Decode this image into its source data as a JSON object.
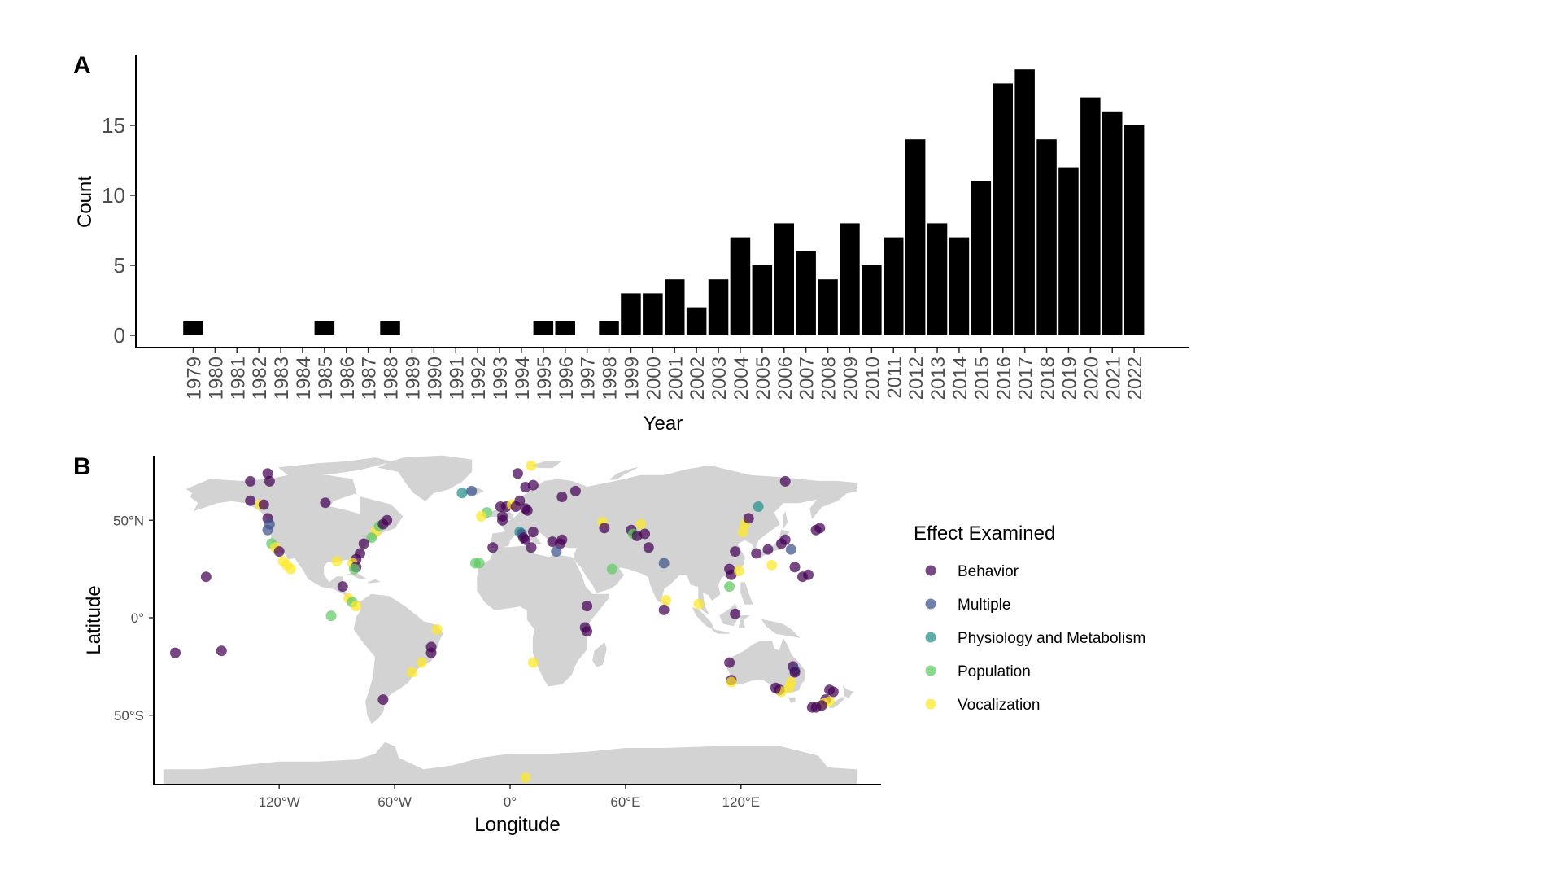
{
  "panel_a_label": "A",
  "panel_b_label": "B",
  "chart_data": [
    {
      "type": "bar",
      "panel": "A",
      "xlabel": "Year",
      "ylabel": "Count",
      "ylim": [
        0,
        20
      ],
      "yticks": [
        0,
        5,
        10,
        15
      ],
      "bar_color": "#000000",
      "categories": [
        "1979",
        "1980",
        "1981",
        "1982",
        "1983",
        "1984",
        "1985",
        "1986",
        "1987",
        "1988",
        "1989",
        "1990",
        "1991",
        "1992",
        "1993",
        "1994",
        "1995",
        "1996",
        "1997",
        "1998",
        "1999",
        "2000",
        "2001",
        "2002",
        "2003",
        "2004",
        "2005",
        "2006",
        "2007",
        "2008",
        "2009",
        "2010",
        "2011",
        "2012",
        "2013",
        "2014",
        "2015",
        "2016",
        "2017",
        "2018",
        "2019",
        "2020",
        "2021",
        "2022"
      ],
      "values": [
        1,
        0,
        0,
        0,
        0,
        0,
        1,
        0,
        0,
        1,
        0,
        0,
        0,
        0,
        0,
        0,
        1,
        1,
        0,
        1,
        3,
        3,
        4,
        2,
        4,
        7,
        5,
        8,
        6,
        4,
        8,
        5,
        7,
        14,
        8,
        7,
        11,
        18,
        19,
        14,
        12,
        17,
        16,
        15
      ]
    },
    {
      "type": "scatter",
      "panel": "B",
      "xlabel": "Longitude",
      "ylabel": "Latitude",
      "xlim": [
        -180,
        190
      ],
      "ylim": [
        -85,
        84
      ],
      "xticks": [
        {
          "v": -120,
          "label": "120°W"
        },
        {
          "v": -60,
          "label": "60°W"
        },
        {
          "v": 0,
          "label": "0°"
        },
        {
          "v": 60,
          "label": "60°E"
        },
        {
          "v": 120,
          "label": "120°E"
        }
      ],
      "yticks": [
        {
          "v": 50,
          "label": "50°N"
        },
        {
          "v": 0,
          "label": "0°"
        },
        {
          "v": -50,
          "label": "50°S"
        }
      ],
      "land_color": "#d3d3d3",
      "legend_title": "Effect Examined",
      "categories": [
        {
          "name": "Behavior",
          "color": "#440154"
        },
        {
          "name": "Multiple",
          "color": "#3b528b"
        },
        {
          "name": "Physiology and Metabolism",
          "color": "#21908c"
        },
        {
          "name": "Population",
          "color": "#5ec962"
        },
        {
          "name": "Vocalization",
          "color": "#fde725"
        }
      ],
      "points": [
        {
          "lon": -135,
          "lat": 70,
          "cat": "Behavior"
        },
        {
          "lon": -126,
          "lat": 74,
          "cat": "Behavior"
        },
        {
          "lon": -125,
          "lat": 70,
          "cat": "Behavior"
        },
        {
          "lon": -135,
          "lat": 60,
          "cat": "Behavior"
        },
        {
          "lon": -130,
          "lat": 58,
          "cat": "Vocalization"
        },
        {
          "lon": -128,
          "lat": 58,
          "cat": "Behavior"
        },
        {
          "lon": -126,
          "lat": 51,
          "cat": "Behavior"
        },
        {
          "lon": -125,
          "lat": 48,
          "cat": "Multiple"
        },
        {
          "lon": -126,
          "lat": 45,
          "cat": "Multiple"
        },
        {
          "lon": -124,
          "lat": 38,
          "cat": "Population"
        },
        {
          "lon": -122,
          "lat": 36,
          "cat": "Vocalization"
        },
        {
          "lon": -120,
          "lat": 34,
          "cat": "Behavior"
        },
        {
          "lon": -118,
          "lat": 29,
          "cat": "Vocalization"
        },
        {
          "lon": -116,
          "lat": 27,
          "cat": "Vocalization"
        },
        {
          "lon": -114,
          "lat": 25,
          "cat": "Vocalization"
        },
        {
          "lon": -96,
          "lat": 59,
          "cat": "Behavior"
        },
        {
          "lon": -158,
          "lat": 21,
          "cat": "Behavior"
        },
        {
          "lon": -174,
          "lat": -18,
          "cat": "Behavior"
        },
        {
          "lon": -150,
          "lat": -17,
          "cat": "Behavior"
        },
        {
          "lon": -70,
          "lat": 44,
          "cat": "Vocalization"
        },
        {
          "lon": -68,
          "lat": 47,
          "cat": "Population"
        },
        {
          "lon": -66,
          "lat": 48,
          "cat": "Behavior"
        },
        {
          "lon": -64,
          "lat": 50,
          "cat": "Behavior"
        },
        {
          "lon": -72,
          "lat": 41,
          "cat": "Population"
        },
        {
          "lon": -76,
          "lat": 38,
          "cat": "Behavior"
        },
        {
          "lon": -78,
          "lat": 33,
          "cat": "Behavior"
        },
        {
          "lon": -80,
          "lat": 30,
          "cat": "Behavior"
        },
        {
          "lon": -82,
          "lat": 28,
          "cat": "Vocalization"
        },
        {
          "lon": -80,
          "lat": 26,
          "cat": "Behavior"
        },
        {
          "lon": -81,
          "lat": 25,
          "cat": "Population"
        },
        {
          "lon": -90,
          "lat": 29,
          "cat": "Vocalization"
        },
        {
          "lon": -87,
          "lat": 16,
          "cat": "Behavior"
        },
        {
          "lon": -84,
          "lat": 10,
          "cat": "Vocalization"
        },
        {
          "lon": -82,
          "lat": 8,
          "cat": "Population"
        },
        {
          "lon": -80,
          "lat": 6,
          "cat": "Vocalization"
        },
        {
          "lon": -93,
          "lat": 1,
          "cat": "Population"
        },
        {
          "lon": -38,
          "lat": -6,
          "cat": "Vocalization"
        },
        {
          "lon": -41,
          "lat": -15,
          "cat": "Behavior"
        },
        {
          "lon": -41,
          "lat": -18,
          "cat": "Behavior"
        },
        {
          "lon": -46,
          "lat": -23,
          "cat": "Vocalization"
        },
        {
          "lon": -51,
          "lat": -28,
          "cat": "Vocalization"
        },
        {
          "lon": -66,
          "lat": -42,
          "cat": "Behavior"
        },
        {
          "lon": -25,
          "lat": 64,
          "cat": "Physiology and Metabolism"
        },
        {
          "lon": -20,
          "lat": 65,
          "cat": "Multiple"
        },
        {
          "lon": -12,
          "lat": 54,
          "cat": "Population"
        },
        {
          "lon": -18,
          "lat": 28,
          "cat": "Population"
        },
        {
          "lon": -16,
          "lat": 28,
          "cat": "Population"
        },
        {
          "lon": -9,
          "lat": 36,
          "cat": "Behavior"
        },
        {
          "lon": -5,
          "lat": 57,
          "cat": "Behavior"
        },
        {
          "lon": -4,
          "lat": 52,
          "cat": "Behavior"
        },
        {
          "lon": -4,
          "lat": 50,
          "cat": "Behavior"
        },
        {
          "lon": -2,
          "lat": 57,
          "cat": "Behavior"
        },
        {
          "lon": 1,
          "lat": 58,
          "cat": "Vocalization"
        },
        {
          "lon": 3,
          "lat": 57,
          "cat": "Behavior"
        },
        {
          "lon": 5,
          "lat": 60,
          "cat": "Behavior"
        },
        {
          "lon": 8,
          "lat": 56,
          "cat": "Behavior"
        },
        {
          "lon": 8,
          "lat": 67,
          "cat": "Behavior"
        },
        {
          "lon": 4,
          "lat": 74,
          "cat": "Behavior"
        },
        {
          "lon": 11,
          "lat": 78,
          "cat": "Vocalization"
        },
        {
          "lon": 12,
          "lat": 68,
          "cat": "Behavior"
        },
        {
          "lon": 9,
          "lat": 55,
          "cat": "Behavior"
        },
        {
          "lon": -15,
          "lat": 52,
          "cat": "Vocalization"
        },
        {
          "lon": 5,
          "lat": 44,
          "cat": "Physiology and Metabolism"
        },
        {
          "lon": 6,
          "lat": 43,
          "cat": "Multiple"
        },
        {
          "lon": 7,
          "lat": 41,
          "cat": "Behavior"
        },
        {
          "lon": 8,
          "lat": 40,
          "cat": "Behavior"
        },
        {
          "lon": 11,
          "lat": 36,
          "cat": "Behavior"
        },
        {
          "lon": 12,
          "lat": 44,
          "cat": "Behavior"
        },
        {
          "lon": 22,
          "lat": 39,
          "cat": "Behavior"
        },
        {
          "lon": 26,
          "lat": 38,
          "cat": "Behavior"
        },
        {
          "lon": 27,
          "lat": 40,
          "cat": "Behavior"
        },
        {
          "lon": 24,
          "lat": 34,
          "cat": "Multiple"
        },
        {
          "lon": 27,
          "lat": 62,
          "cat": "Behavior"
        },
        {
          "lon": 34,
          "lat": 65,
          "cat": "Behavior"
        },
        {
          "lon": 40,
          "lat": 6,
          "cat": "Behavior"
        },
        {
          "lon": 39,
          "lat": -5,
          "cat": "Behavior"
        },
        {
          "lon": 40,
          "lat": -7,
          "cat": "Behavior"
        },
        {
          "lon": 12,
          "lat": -23,
          "cat": "Vocalization"
        },
        {
          "lon": 8,
          "lat": -82,
          "cat": "Vocalization"
        },
        {
          "lon": 48,
          "lat": 49,
          "cat": "Vocalization"
        },
        {
          "lon": 49,
          "lat": 46,
          "cat": "Behavior"
        },
        {
          "lon": 53,
          "lat": 25,
          "cat": "Population"
        },
        {
          "lon": 63,
          "lat": 45,
          "cat": "Behavior"
        },
        {
          "lon": 64,
          "lat": 43,
          "cat": "Population"
        },
        {
          "lon": 66,
          "lat": 42,
          "cat": "Behavior"
        },
        {
          "lon": 68,
          "lat": 48,
          "cat": "Vocalization"
        },
        {
          "lon": 70,
          "lat": 43,
          "cat": "Behavior"
        },
        {
          "lon": 72,
          "lat": 36,
          "cat": "Behavior"
        },
        {
          "lon": 80,
          "lat": 28,
          "cat": "Multiple"
        },
        {
          "lon": 81,
          "lat": 9,
          "cat": "Vocalization"
        },
        {
          "lon": 80,
          "lat": 4,
          "cat": "Behavior"
        },
        {
          "lon": 98,
          "lat": 7,
          "cat": "Vocalization"
        },
        {
          "lon": 114,
          "lat": 25,
          "cat": "Behavior"
        },
        {
          "lon": 115,
          "lat": 22,
          "cat": "Behavior"
        },
        {
          "lon": 117,
          "lat": 34,
          "cat": "Behavior"
        },
        {
          "lon": 119,
          "lat": 24,
          "cat": "Vocalization"
        },
        {
          "lon": 121,
          "lat": 44,
          "cat": "Vocalization"
        },
        {
          "lon": 122,
          "lat": 48,
          "cat": "Vocalization"
        },
        {
          "lon": 124,
          "lat": 51,
          "cat": "Behavior"
        },
        {
          "lon": 129,
          "lat": 57,
          "cat": "Physiology and Metabolism"
        },
        {
          "lon": 128,
          "lat": 33,
          "cat": "Behavior"
        },
        {
          "lon": 134,
          "lat": 35,
          "cat": "Behavior"
        },
        {
          "lon": 141,
          "lat": 38,
          "cat": "Behavior"
        },
        {
          "lon": 143,
          "lat": 40,
          "cat": "Behavior"
        },
        {
          "lon": 146,
          "lat": 35,
          "cat": "Multiple"
        },
        {
          "lon": 148,
          "lat": 26,
          "cat": "Behavior"
        },
        {
          "lon": 152,
          "lat": 21,
          "cat": "Behavior"
        },
        {
          "lon": 155,
          "lat": 22,
          "cat": "Behavior"
        },
        {
          "lon": 136,
          "lat": 27,
          "cat": "Vocalization"
        },
        {
          "lon": 143,
          "lat": 70,
          "cat": "Behavior"
        },
        {
          "lon": 159,
          "lat": 45,
          "cat": "Behavior"
        },
        {
          "lon": 161,
          "lat": 46,
          "cat": "Behavior"
        },
        {
          "lon": 117,
          "lat": 2,
          "cat": "Behavior"
        },
        {
          "lon": 114,
          "lat": 16,
          "cat": "Population"
        },
        {
          "lon": 114,
          "lat": -23,
          "cat": "Behavior"
        },
        {
          "lon": 115,
          "lat": -32,
          "cat": "Behavior"
        },
        {
          "lon": 115,
          "lat": -33,
          "cat": "Vocalization"
        },
        {
          "lon": 147,
          "lat": -25,
          "cat": "Behavior"
        },
        {
          "lon": 148,
          "lat": -27,
          "cat": "Multiple"
        },
        {
          "lon": 148,
          "lat": -28,
          "cat": "Behavior"
        },
        {
          "lon": 146,
          "lat": -33,
          "cat": "Vocalization"
        },
        {
          "lon": 145,
          "lat": -36,
          "cat": "Vocalization"
        },
        {
          "lon": 140,
          "lat": -37,
          "cat": "Behavior"
        },
        {
          "lon": 141,
          "lat": -38,
          "cat": "Vocalization"
        },
        {
          "lon": 138,
          "lat": -36,
          "cat": "Behavior"
        },
        {
          "lon": 166,
          "lat": -37,
          "cat": "Behavior"
        },
        {
          "lon": 168,
          "lat": -38,
          "cat": "Behavior"
        },
        {
          "lon": 164,
          "lat": -42,
          "cat": "Behavior"
        },
        {
          "lon": 166,
          "lat": -43,
          "cat": "Vocalization"
        },
        {
          "lon": 163,
          "lat": -44,
          "cat": "Vocalization"
        },
        {
          "lon": 162,
          "lat": -45,
          "cat": "Behavior"
        },
        {
          "lon": 159,
          "lat": -46,
          "cat": "Behavior"
        },
        {
          "lon": 157,
          "lat": -46,
          "cat": "Behavior"
        }
      ]
    }
  ]
}
